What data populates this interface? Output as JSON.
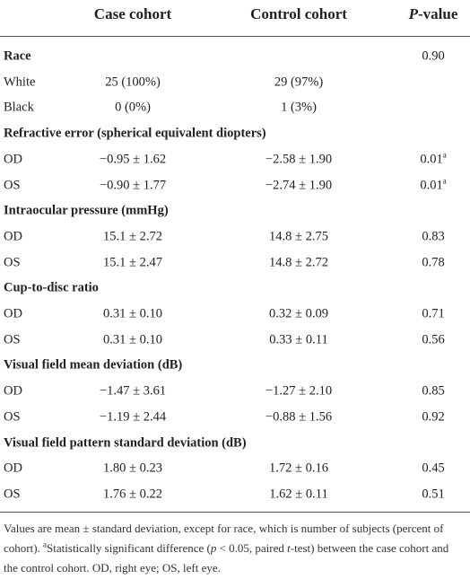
{
  "header": {
    "case": "Case cohort",
    "control": "Control cohort",
    "p_value": [
      {
        "text": "P",
        "style": "italic"
      },
      {
        "text": "-value",
        "style": "normal"
      }
    ]
  },
  "sections": [
    {
      "title": "Race",
      "p_value": [
        {
          "text": "0.90",
          "style": "normal"
        }
      ],
      "rows": [
        {
          "label": "White",
          "case": "25 (100%)",
          "control": "29 (97%)"
        },
        {
          "label": "Black",
          "case": "0 (0%)",
          "control": "1 (3%)"
        }
      ]
    },
    {
      "title": "Refractive error (spherical equivalent diopters)",
      "rows": [
        {
          "label": "OD",
          "case": "−0.95 ± 1.62",
          "control": "−2.58 ± 1.90",
          "p_value": [
            {
              "text": "0.01",
              "style": "normal"
            },
            {
              "text": "a",
              "style": "sup"
            }
          ]
        },
        {
          "label": "OS",
          "case": "−0.90 ± 1.77",
          "control": "−2.74 ± 1.90",
          "p_value": [
            {
              "text": "0.01",
              "style": "normal"
            },
            {
              "text": "a",
              "style": "sup"
            }
          ]
        }
      ]
    },
    {
      "title": "Intraocular pressure (mmHg)",
      "rows": [
        {
          "label": "OD",
          "case": "15.1 ± 2.72",
          "control": "14.8 ± 2.75",
          "p_value": [
            {
              "text": "0.83",
              "style": "normal"
            }
          ]
        },
        {
          "label": "OS",
          "case": "15.1 ± 2.47",
          "control": "14.8 ± 2.72",
          "p_value": [
            {
              "text": "0.78",
              "style": "normal"
            }
          ]
        }
      ]
    },
    {
      "title": "Cup-to-disc ratio",
      "rows": [
        {
          "label": "OD",
          "case": "0.31 ± 0.10",
          "control": "0.32 ± 0.09",
          "p_value": [
            {
              "text": "0.71",
              "style": "normal"
            }
          ]
        },
        {
          "label": "OS",
          "case": "0.31 ± 0.10",
          "control": "0.33 ± 0.11",
          "p_value": [
            {
              "text": "0.56",
              "style": "normal"
            }
          ]
        }
      ]
    },
    {
      "title": "Visual field mean deviation (dB)",
      "rows": [
        {
          "label": "OD",
          "case": "−1.47 ± 3.61",
          "control": "−1.27 ± 2.10",
          "p_value": [
            {
              "text": "0.85",
              "style": "normal"
            }
          ]
        },
        {
          "label": "OS",
          "case": "−1.19 ± 2.44",
          "control": "−0.88 ± 1.56",
          "p_value": [
            {
              "text": "0.92",
              "style": "normal"
            }
          ]
        }
      ]
    },
    {
      "title": "Visual field pattern standard deviation (dB)",
      "rows": [
        {
          "label": "OD",
          "case": "1.80 ± 0.23",
          "control": "1.72 ± 0.16",
          "p_value": [
            {
              "text": "0.45",
              "style": "normal"
            }
          ]
        },
        {
          "label": "OS",
          "case": "1.76 ± 0.22",
          "control": "1.62 ± 0.11",
          "p_value": [
            {
              "text": "0.51",
              "style": "normal"
            }
          ]
        }
      ]
    }
  ],
  "footnote": [
    {
      "text": "Values are mean ± standard deviation, except for race, which is number of subjects (percent of cohort). ",
      "style": "normal"
    },
    {
      "text": "a",
      "style": "sup"
    },
    {
      "text": "Statistically significant difference (",
      "style": "normal"
    },
    {
      "text": "p",
      "style": "italic"
    },
    {
      "text": " < 0.05, paired ",
      "style": "normal"
    },
    {
      "text": "t",
      "style": "italic"
    },
    {
      "text": "-test) between the case cohort and the control cohort. OD, right eye; OS, left eye.",
      "style": "normal"
    }
  ]
}
